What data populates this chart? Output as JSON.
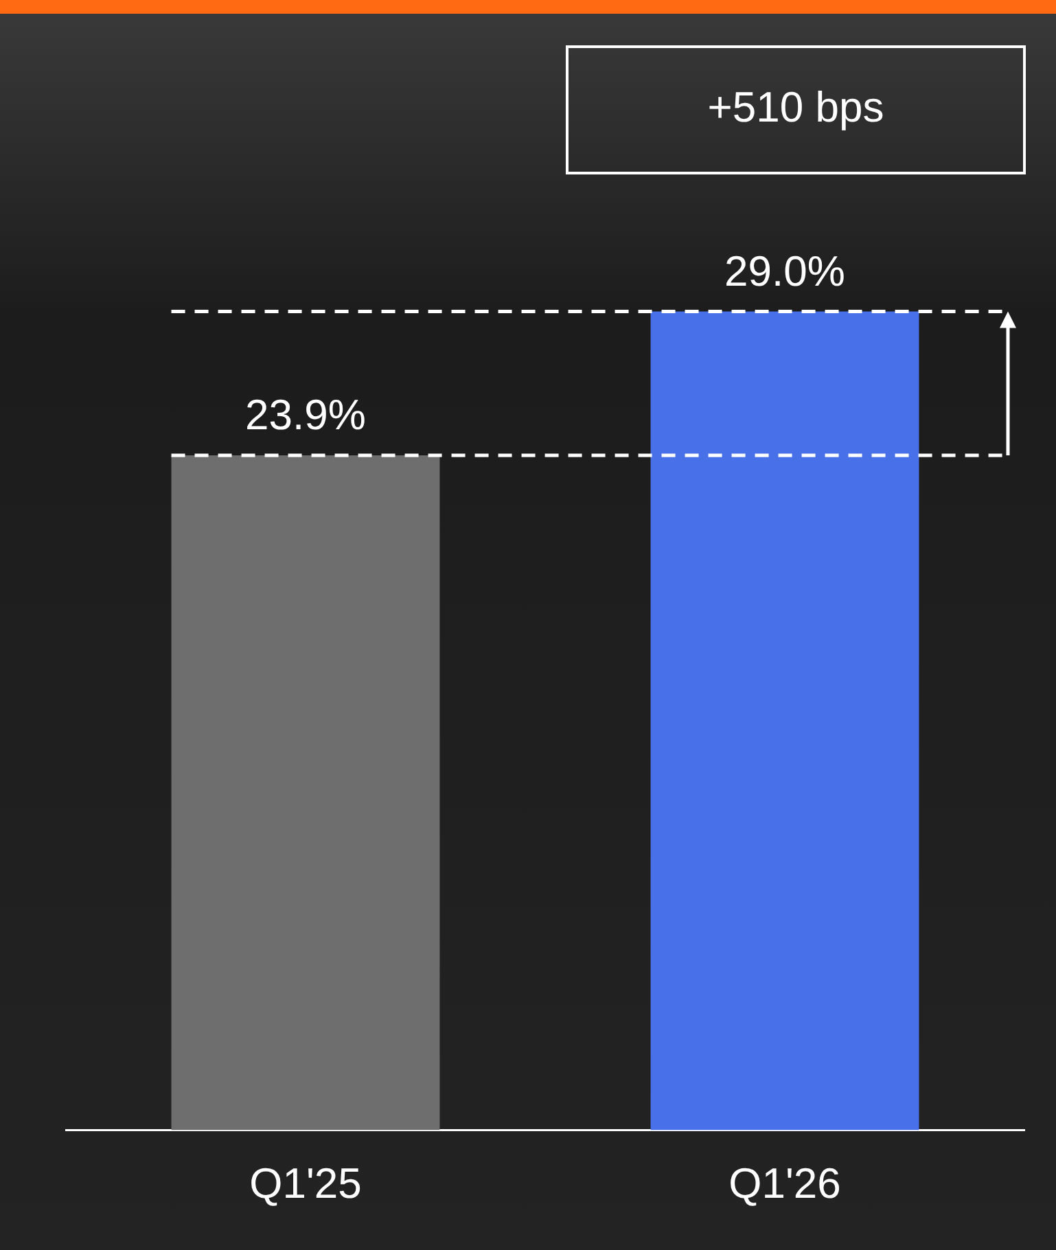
{
  "chart_data": {
    "type": "bar",
    "categories": [
      "Q1'25",
      "Q1'26"
    ],
    "values": [
      23.9,
      29.0
    ],
    "value_labels": [
      "23.9%",
      "29.0%"
    ],
    "colors": [
      "#6e6e6e",
      "#4870e8"
    ],
    "tick_labels": "x",
    "annotations": [
      "+510 bps"
    ],
    "ref_lines": [
      {
        "axis": "y",
        "value": 23.9,
        "color": "#ffffff",
        "line_style": "dashed"
      },
      {
        "axis": "y",
        "value": 29.0,
        "color": "#ffffff",
        "line_style": "dashed"
      }
    ]
  }
}
